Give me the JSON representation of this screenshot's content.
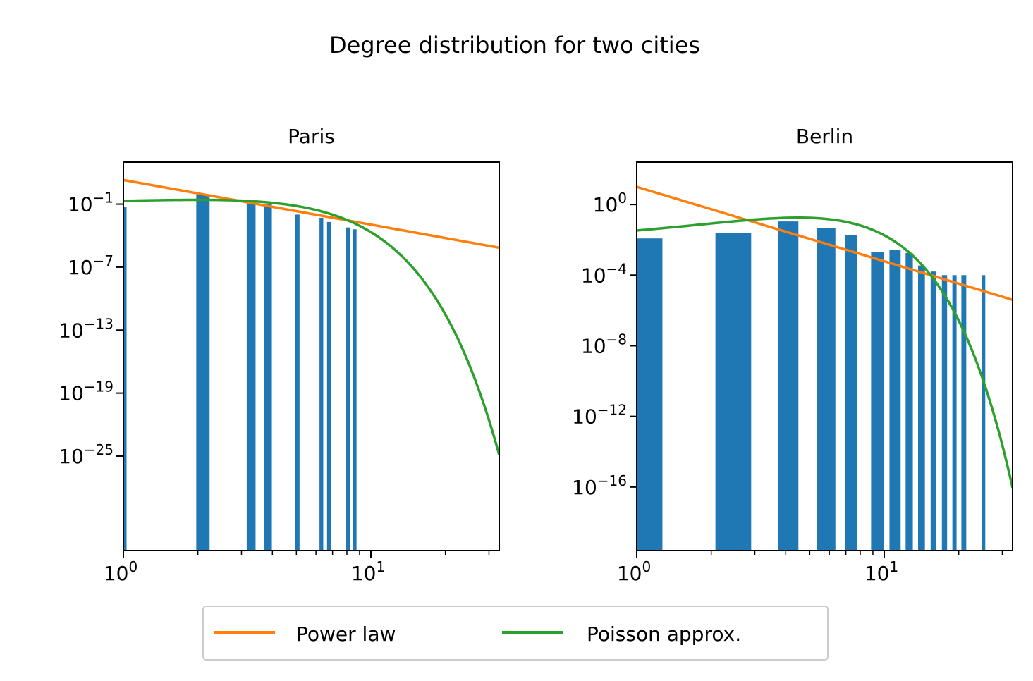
{
  "figure": {
    "title": "Degree distribution for two cities"
  },
  "colors": {
    "bars": "#1f77b4",
    "power_law": "#ff7f0e",
    "poisson": "#2ca02c",
    "legend_border": "#cccccc"
  },
  "legend": {
    "placement": "bottom-center",
    "entries": [
      {
        "label": "Power law",
        "color": "#ff7f0e"
      },
      {
        "label": "Poisson approx.",
        "color": "#2ca02c"
      }
    ]
  },
  "chart_data": [
    {
      "type": "bar",
      "title": "Paris",
      "xscale": "log",
      "yscale": "log",
      "xlim": [
        1,
        33
      ],
      "ylim_exp": [
        -34,
        3
      ],
      "x_ticks": [
        {
          "base": "10",
          "exp": "0",
          "value": 1
        },
        {
          "base": "10",
          "exp": "1",
          "value": 10
        }
      ],
      "y_ticks": [
        {
          "base": "10",
          "exp": "−1",
          "value_exp": -1
        },
        {
          "base": "10",
          "exp": "−7",
          "value_exp": -7
        },
        {
          "base": "10",
          "exp": "−13",
          "value_exp": -13
        },
        {
          "base": "10",
          "exp": "−19",
          "value_exp": -19
        },
        {
          "base": "10",
          "exp": "−25",
          "value_exp": -25
        }
      ],
      "bars": [
        {
          "x0": 1.0,
          "x1": 1.03,
          "y": 0.05
        },
        {
          "x0": 1.97,
          "x1": 2.23,
          "y": 0.8
        },
        {
          "x0": 3.15,
          "x1": 3.42,
          "y": 0.25
        },
        {
          "x0": 3.7,
          "x1": 3.98,
          "y": 0.1
        },
        {
          "x0": 4.95,
          "x1": 5.15,
          "y": 0.01
        },
        {
          "x0": 6.2,
          "x1": 6.42,
          "y": 0.005
        },
        {
          "x0": 6.65,
          "x1": 6.9,
          "y": 0.002
        },
        {
          "x0": 7.95,
          "x1": 8.25,
          "y": 0.0006
        },
        {
          "x0": 8.45,
          "x1": 8.75,
          "y": 0.0004
        }
      ],
      "power_law": {
        "points": [
          [
            1,
            20
          ],
          [
            33,
            7e-06
          ]
        ]
      },
      "poisson": {
        "lambda": 2.5
      }
    },
    {
      "type": "bar",
      "title": "Berlin",
      "xscale": "log",
      "yscale": "log",
      "xlim": [
        1,
        33
      ],
      "ylim_exp": [
        -19.6,
        2.4
      ],
      "x_ticks": [
        {
          "base": "10",
          "exp": "0",
          "value": 1
        },
        {
          "base": "10",
          "exp": "1",
          "value": 10
        }
      ],
      "y_ticks": [
        {
          "base": "10",
          "exp": "0",
          "value_exp": 0
        },
        {
          "base": "10",
          "exp": "−4",
          "value_exp": -4
        },
        {
          "base": "10",
          "exp": "−8",
          "value_exp": -8
        },
        {
          "base": "10",
          "exp": "−12",
          "value_exp": -12
        },
        {
          "base": "10",
          "exp": "−16",
          "value_exp": -16
        }
      ],
      "bars": [
        {
          "x0": 1.0,
          "x1": 1.27,
          "y": 0.012
        },
        {
          "x0": 2.08,
          "x1": 2.9,
          "y": 0.025
        },
        {
          "x0": 3.72,
          "x1": 4.5,
          "y": 0.11
        },
        {
          "x0": 5.35,
          "x1": 6.35,
          "y": 0.045
        },
        {
          "x0": 6.95,
          "x1": 7.78,
          "y": 0.019
        },
        {
          "x0": 8.85,
          "x1": 9.95,
          "y": 0.002
        },
        {
          "x0": 10.5,
          "x1": 11.65,
          "y": 0.0028
        },
        {
          "x0": 12.2,
          "x1": 13.05,
          "y": 0.0018
        },
        {
          "x0": 13.7,
          "x1": 14.6,
          "y": 0.00035
        },
        {
          "x0": 15.4,
          "x1": 16.25,
          "y": 0.00016
        },
        {
          "x0": 17.1,
          "x1": 17.95,
          "y": 0.0001
        },
        {
          "x0": 18.85,
          "x1": 19.6,
          "y": 0.0001
        },
        {
          "x0": 20.5,
          "x1": 21.45,
          "y": 0.0001
        },
        {
          "x0": 24.8,
          "x1": 25.6,
          "y": 0.0001
        }
      ],
      "power_law": {
        "points": [
          [
            1,
            10
          ],
          [
            33,
            4e-06
          ]
        ]
      },
      "poisson": {
        "lambda": 5
      }
    }
  ]
}
